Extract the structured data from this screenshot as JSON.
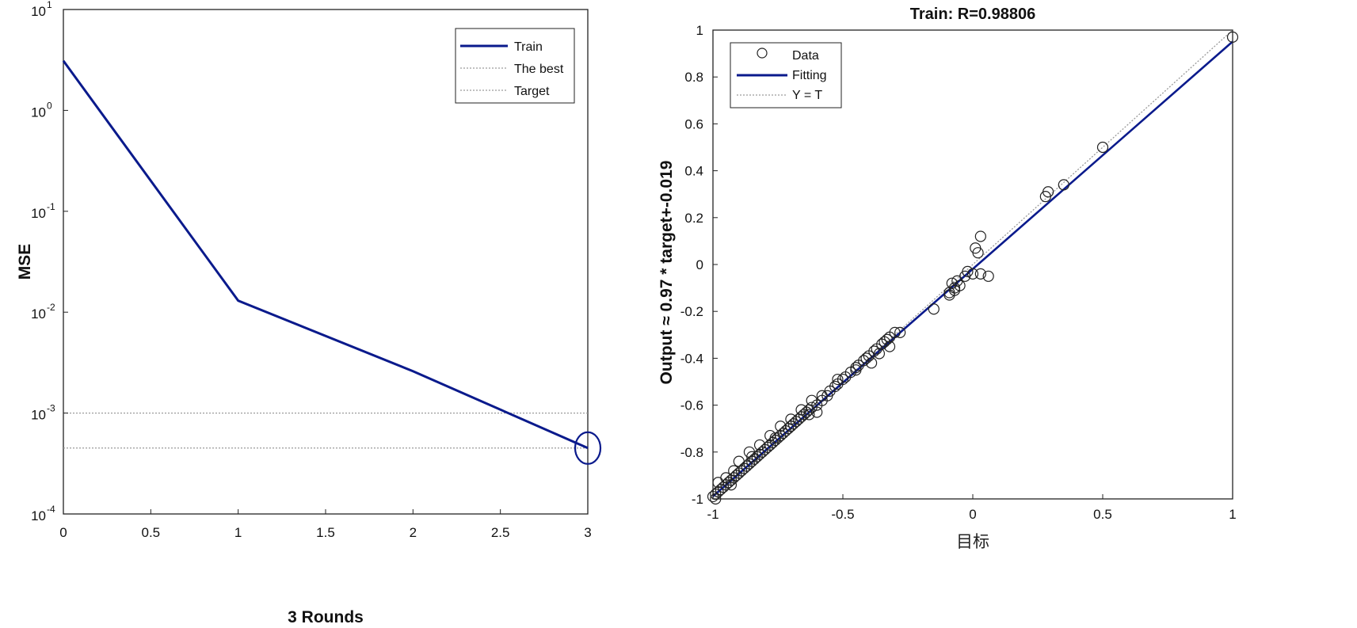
{
  "chart_data": [
    {
      "type": "line",
      "title": "",
      "xlabel": "3 Rounds",
      "ylabel": "MSE",
      "xlim": [
        0,
        3
      ],
      "ylim": [
        0.0001,
        10
      ],
      "yscale": "log",
      "xticks": [
        "0",
        "0.5",
        "1",
        "1.5",
        "2",
        "2.5",
        "3"
      ],
      "yticks": [
        {
          "base": "10",
          "exp": "1",
          "value": 10
        },
        {
          "base": "10",
          "exp": "0",
          "value": 1
        },
        {
          "base": "10",
          "exp": "-1",
          "value": 0.1
        },
        {
          "base": "10",
          "exp": "-2",
          "value": 0.01
        },
        {
          "base": "10",
          "exp": "-3",
          "value": 0.001
        },
        {
          "base": "10",
          "exp": "-4",
          "value": 0.0001
        }
      ],
      "series": [
        {
          "name": "Train",
          "x": [
            0,
            1,
            2,
            3
          ],
          "y": [
            3.1,
            0.013,
            0.0026,
            0.00045
          ],
          "color": "#0a1a8c"
        }
      ],
      "best_marker": {
        "x": 3,
        "y": 0.00045
      },
      "reference_lines": [
        {
          "name": "The best",
          "y": 0.00045
        },
        {
          "name": "Target",
          "y": 0.001
        }
      ],
      "legend": {
        "position": "top-right",
        "entries": [
          "Train",
          "The best",
          "Target"
        ]
      },
      "grid": false
    },
    {
      "type": "scatter",
      "title": "Train: R=0.98806",
      "xlabel": "目标",
      "ylabel": "Output ≈ 0.97 * target+-0.019",
      "xlim": [
        -1,
        1
      ],
      "ylim": [
        -1,
        1
      ],
      "xticks": [
        "-1",
        "-0.5",
        "0",
        "0.5",
        "1"
      ],
      "yticks": [
        "1",
        "0.8",
        "0.6",
        "0.4",
        "0.2",
        "0",
        "-0.2",
        "-0.4",
        "-0.6",
        "-0.8",
        "-1"
      ],
      "series": [
        {
          "name": "Data",
          "x": [
            -1.0,
            -0.99,
            -0.98,
            -0.97,
            -0.96,
            -0.95,
            -0.94,
            -0.93,
            -0.92,
            -0.91,
            -0.9,
            -0.89,
            -0.88,
            -0.87,
            -0.86,
            -0.85,
            -0.84,
            -0.83,
            -0.82,
            -0.81,
            -0.8,
            -0.79,
            -0.78,
            -0.77,
            -0.76,
            -0.75,
            -0.74,
            -0.73,
            -0.72,
            -0.71,
            -0.7,
            -0.69,
            -0.68,
            -0.67,
            -0.66,
            -0.65,
            -0.64,
            -0.63,
            -0.62,
            -0.6,
            -0.58,
            -0.56,
            -0.55,
            -0.53,
            -0.52,
            -0.5,
            -0.49,
            -0.47,
            -0.45,
            -0.44,
            -0.42,
            -0.41,
            -0.4,
            -0.38,
            -0.37,
            -0.35,
            -0.34,
            -0.33,
            -0.32,
            -0.3,
            -0.28,
            -0.15,
            -0.09,
            -0.08,
            -0.07,
            -0.06,
            -0.05,
            -0.03,
            -0.02,
            0.0,
            0.01,
            0.02,
            0.03,
            0.06,
            0.28,
            0.29,
            0.35,
            0.5,
            1.0,
            -0.98,
            -0.95,
            -0.92,
            -0.9,
            -0.86,
            -0.82,
            -0.78,
            -0.74,
            -0.7,
            -0.66,
            -0.62,
            -0.58,
            -0.63,
            -0.7,
            -0.52,
            -0.45,
            -0.39,
            -0.36,
            -0.32,
            -0.6,
            -0.76,
            -0.85,
            -0.93,
            -0.99,
            -0.09,
            -0.07,
            0.03
          ],
          "y": [
            -0.99,
            -0.98,
            -0.97,
            -0.96,
            -0.95,
            -0.94,
            -0.93,
            -0.92,
            -0.91,
            -0.9,
            -0.89,
            -0.88,
            -0.87,
            -0.86,
            -0.85,
            -0.84,
            -0.83,
            -0.82,
            -0.81,
            -0.8,
            -0.79,
            -0.78,
            -0.77,
            -0.76,
            -0.75,
            -0.74,
            -0.73,
            -0.72,
            -0.71,
            -0.7,
            -0.69,
            -0.68,
            -0.67,
            -0.66,
            -0.65,
            -0.64,
            -0.63,
            -0.62,
            -0.61,
            -0.6,
            -0.58,
            -0.56,
            -0.54,
            -0.52,
            -0.51,
            -0.49,
            -0.48,
            -0.46,
            -0.44,
            -0.43,
            -0.41,
            -0.4,
            -0.39,
            -0.37,
            -0.36,
            -0.34,
            -0.33,
            -0.32,
            -0.31,
            -0.29,
            -0.29,
            -0.19,
            -0.12,
            -0.08,
            -0.1,
            -0.07,
            -0.09,
            -0.05,
            -0.03,
            -0.04,
            0.07,
            0.05,
            -0.04,
            -0.05,
            0.29,
            0.31,
            0.34,
            0.5,
            0.97,
            -0.93,
            -0.91,
            -0.88,
            -0.84,
            -0.8,
            -0.77,
            -0.73,
            -0.69,
            -0.66,
            -0.62,
            -0.58,
            -0.56,
            -0.64,
            -0.69,
            -0.49,
            -0.45,
            -0.42,
            -0.38,
            -0.35,
            -0.63,
            -0.74,
            -0.82,
            -0.94,
            -1.0,
            -0.13,
            -0.11,
            0.12
          ]
        },
        {
          "name": "Fitting",
          "slope": 0.97,
          "intercept": -0.019,
          "color": "#0a1a8c"
        },
        {
          "name": "Y = T",
          "slope": 1,
          "intercept": 0
        }
      ],
      "legend": {
        "position": "top-left",
        "entries": [
          "Data",
          "Fitting",
          "Y = T"
        ]
      },
      "grid": false
    }
  ]
}
